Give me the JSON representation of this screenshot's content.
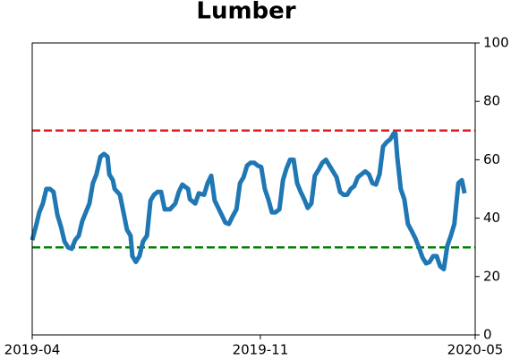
{
  "chart_data": {
    "type": "line",
    "title": "Lumber",
    "x": [
      0,
      0.8,
      1.6,
      2.4,
      3.2,
      4.0,
      4.8,
      5.7,
      6.5,
      7.3,
      8.1,
      8.9,
      9.7,
      10.5,
      11.3,
      12.1,
      12.9,
      13.7,
      14.5,
      15.4,
      16.2,
      17.0,
      17.4,
      18.2,
      18.6,
      19.8,
      20.6,
      21.4,
      22.2,
      22.6,
      23.4,
      24.2,
      25.0,
      25.9,
      26.7,
      27.5,
      28.3,
      29.1,
      29.9,
      31.1,
      32.3,
      33.1,
      33.9,
      35.2,
      35.6,
      36.8,
      37.6,
      38.8,
      39.6,
      40.4,
      41.2,
      42.0,
      42.8,
      43.6,
      44.4,
      45.2,
      46.1,
      46.9,
      47.7,
      48.5,
      49.3,
      50.1,
      50.9,
      51.7,
      52.5,
      53.3,
      54.1,
      54.9,
      55.8,
      56.6,
      57.4,
      58.2,
      59.0,
      59.8,
      60.6,
      61.4,
      62.2,
      63.0,
      63.8,
      64.6,
      65.5,
      66.3,
      67.1,
      67.9,
      68.7,
      69.5,
      70.3,
      71.1,
      71.9,
      72.7,
      73.5,
      74.3,
      75.2,
      76.0,
      76.8,
      77.6,
      78.4,
      79.2,
      80.0,
      80.8,
      81.6,
      82.0,
      82.4,
      83.2,
      84.0,
      84.8,
      85.7,
      86.5,
      87.3,
      88.1,
      88.9,
      89.7,
      90.5,
      91.3,
      92.1,
      92.9,
      93.7,
      94.5,
      95.3,
      96.2,
      97.0,
      97.6
    ],
    "series": [
      {
        "color": "#1f77b4",
        "values": [
          32.5,
          37,
          42,
          45,
          50,
          50,
          49,
          41,
          37,
          32,
          30,
          29.5,
          32.5,
          34,
          39,
          42,
          45,
          52,
          55,
          61,
          62,
          61,
          55,
          53,
          50,
          48,
          42,
          36,
          34,
          27,
          25,
          27,
          32,
          34,
          46,
          48,
          49,
          49,
          43,
          43,
          45,
          49,
          51.5,
          50,
          46.5,
          45,
          48.5,
          48,
          52,
          54.5,
          46,
          43.5,
          41,
          38.5,
          38,
          40.5,
          43,
          52,
          54,
          58,
          59,
          59,
          58,
          57.5,
          50,
          46.5,
          42,
          42,
          43,
          53,
          57,
          60,
          60,
          52,
          49,
          46.5,
          43.5,
          45,
          54.5,
          56.5,
          59,
          60,
          58,
          56,
          54,
          49,
          48,
          48,
          50,
          51,
          54,
          55,
          56,
          55,
          52,
          51.5,
          55,
          64.5,
          66,
          67,
          69,
          69,
          61,
          50,
          46.5,
          38,
          35.5,
          33,
          30,
          26.5,
          24.5,
          25,
          27,
          27,
          23.5,
          22.5,
          30.5,
          34,
          38,
          52,
          53,
          48.5
        ]
      }
    ],
    "hlines": [
      {
        "value": 70,
        "color": "#e41a1c"
      },
      {
        "value": 30,
        "color": "#008000"
      }
    ],
    "xlim": [
      0,
      100
    ],
    "xticks": [
      {
        "value": 0,
        "label": "2019-04"
      },
      {
        "value": 51.5,
        "label": "2019-11"
      },
      {
        "value": 100,
        "label": "2020-05"
      }
    ],
    "ylim": [
      0,
      100
    ],
    "yticks": [
      0,
      20,
      40,
      60,
      80,
      100
    ],
    "y_axis_side": "right"
  }
}
